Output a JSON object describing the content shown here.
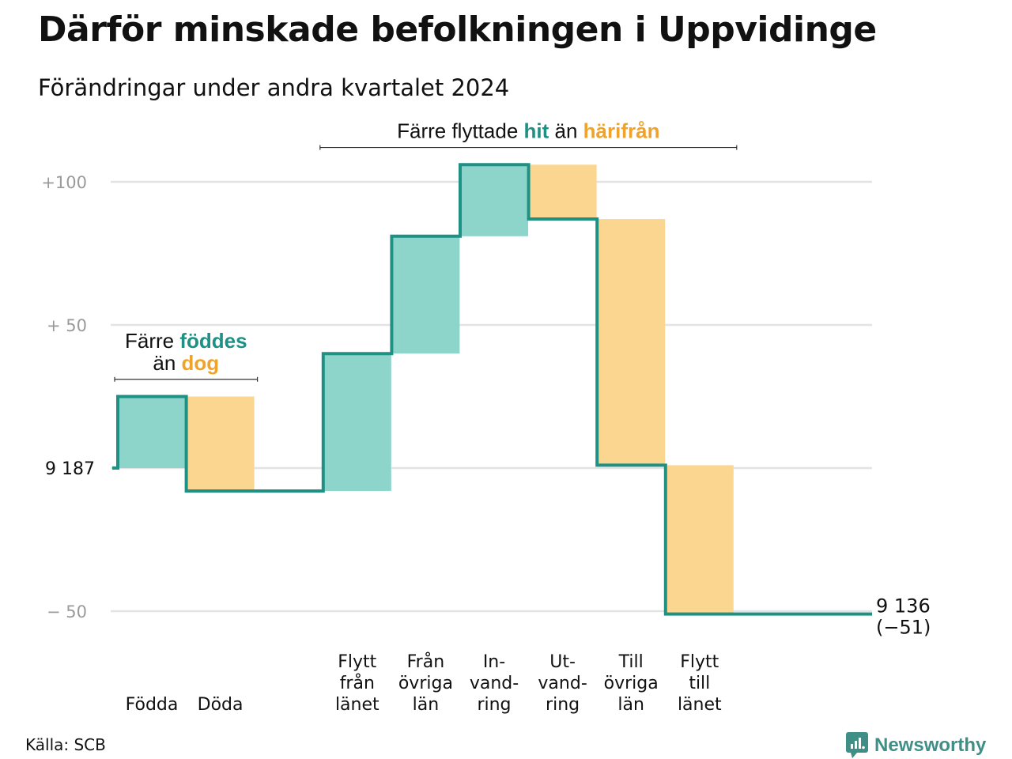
{
  "title": "Därför minskade befolkningen i Uppvidinge",
  "subtitle": "Förändringar under andra kvartalet 2024",
  "source": "Källa: SCB",
  "brand": {
    "name": "Newsworthy",
    "icon": "newsworthy-logo-icon"
  },
  "colors": {
    "increase": "#8dd5cb",
    "decrease": "#fbd691",
    "line": "#1f9184",
    "increase_text": "#1f9184",
    "decrease_text": "#f0a32a",
    "grid": "#e3e3e3"
  },
  "chart_data": {
    "type": "waterfall",
    "start_value": 9187,
    "start_label": "9 187",
    "end_value": 9136,
    "end_label": "9 136",
    "end_change_label": "(−51)",
    "y_axis": {
      "ticks": [
        {
          "value": 100,
          "label": "+100"
        },
        {
          "value": 50,
          "label": "+  50"
        },
        {
          "value": -50,
          "label": "−  50"
        }
      ],
      "range": [
        -50,
        108
      ]
    },
    "categories": [
      {
        "label_lines": [
          "Födda"
        ],
        "value": 25,
        "direction": "increase"
      },
      {
        "label_lines": [
          "Döda"
        ],
        "value": -33,
        "direction": "decrease"
      },
      {
        "label_lines": [],
        "value": 0,
        "direction": "gap"
      },
      {
        "label_lines": [
          "Flytt",
          "från",
          "länet"
        ],
        "value": 48,
        "direction": "increase"
      },
      {
        "label_lines": [
          "Från",
          "övriga",
          "län"
        ],
        "value": 41,
        "direction": "increase"
      },
      {
        "label_lines": [
          "In-",
          "vand-",
          "ring"
        ],
        "value": 25,
        "direction": "increase"
      },
      {
        "label_lines": [
          "Ut-",
          "vand-",
          "ring"
        ],
        "value": -19,
        "direction": "decrease"
      },
      {
        "label_lines": [
          "Till",
          "övriga",
          "län"
        ],
        "value": -86,
        "direction": "decrease"
      },
      {
        "label_lines": [
          "Flytt",
          "till",
          "länet"
        ],
        "value": -52,
        "direction": "decrease"
      }
    ],
    "annotations": [
      {
        "name": "births-annotation",
        "lines": [
          [
            {
              "text": "Färre ",
              "style": "plain"
            },
            {
              "text": "föddes",
              "style": "increase"
            }
          ],
          [
            {
              "text": "än ",
              "style": "plain"
            },
            {
              "text": "dog",
              "style": "decrease"
            }
          ]
        ],
        "from_category": 0,
        "to_category": 1,
        "level": 31
      },
      {
        "name": "moves-annotation",
        "lines": [
          [
            {
              "text": "Färre flyttade ",
              "style": "plain"
            },
            {
              "text": "hit",
              "style": "increase"
            },
            {
              "text": "  än ",
              "style": "plain"
            },
            {
              "text": "härifrån",
              "style": "decrease"
            }
          ]
        ],
        "from_category": 3,
        "to_category": 8,
        "level": 112
      }
    ]
  }
}
